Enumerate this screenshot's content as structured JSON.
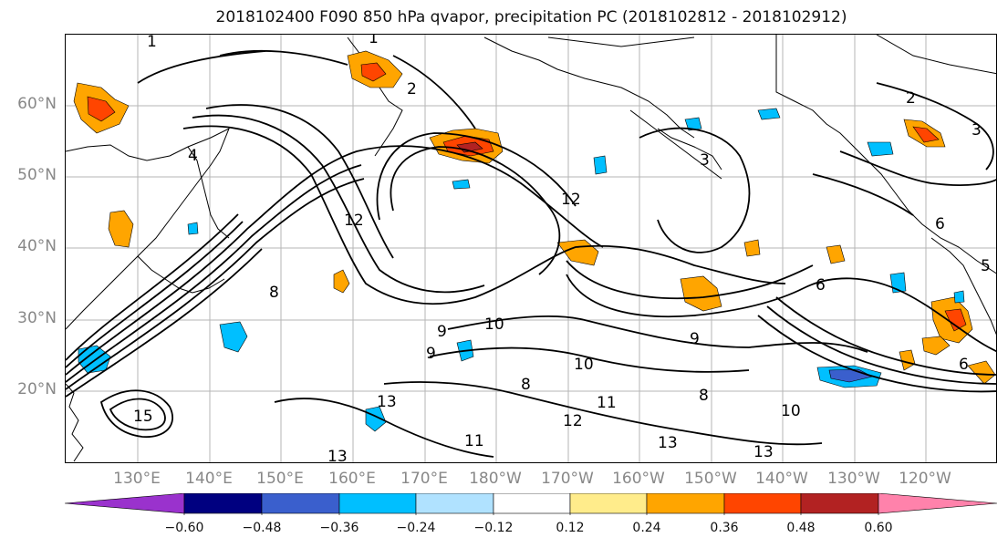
{
  "title": "2018102400 F090 850 hPa qvapor, precipitation PC (2018102812 - 2018102912)",
  "lat_labels": [
    "60°N",
    "50°N",
    "40°N",
    "30°N",
    "20°N"
  ],
  "lon_labels": [
    "130°E",
    "140°E",
    "150°E",
    "160°E",
    "170°E",
    "180°W",
    "170°W",
    "160°W",
    "150°W",
    "140°W",
    "130°W",
    "120°W"
  ],
  "colorbar": {
    "colors": [
      "#9a32cd",
      "#000080",
      "#3a5fcd",
      "#00bfff",
      "#b0e2ff",
      "#ffffff",
      "#ffec8b",
      "#ffa500",
      "#ff4500",
      "#b22222",
      "#ff82ab"
    ],
    "tick_labels": [
      "−0.60",
      "−0.48",
      "−0.36",
      "−0.24",
      "−0.12",
      "0.12",
      "0.24",
      "0.36",
      "0.48",
      "0.60"
    ]
  },
  "contour_labels": [
    {
      "text": "1"
    },
    {
      "text": "1"
    },
    {
      "text": "2"
    },
    {
      "text": "2"
    },
    {
      "text": "3"
    },
    {
      "text": "4"
    },
    {
      "text": "3"
    },
    {
      "text": "6"
    },
    {
      "text": "5"
    },
    {
      "text": "12"
    },
    {
      "text": "12"
    },
    {
      "text": "6"
    },
    {
      "text": "9"
    },
    {
      "text": "9"
    },
    {
      "text": "10"
    },
    {
      "text": "10"
    },
    {
      "text": "8"
    },
    {
      "text": "8"
    },
    {
      "text": "11"
    },
    {
      "text": "12"
    },
    {
      "text": "10"
    },
    {
      "text": "13"
    },
    {
      "text": "13"
    },
    {
      "text": "11"
    },
    {
      "text": "13"
    },
    {
      "text": "15"
    },
    {
      "text": "13"
    },
    {
      "text": "8"
    },
    {
      "text": "6"
    },
    {
      "text": "9"
    }
  ]
}
